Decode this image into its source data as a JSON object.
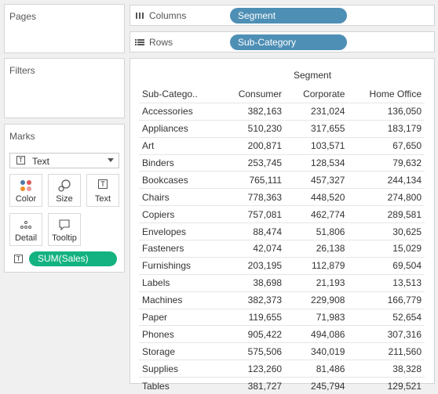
{
  "panels": {
    "pages": "Pages",
    "filters": "Filters",
    "marks": "Marks"
  },
  "marks": {
    "dropdown": "Text",
    "buttons": [
      "Color",
      "Size",
      "Text",
      "Detail",
      "Tooltip"
    ],
    "field_pill": "SUM(Sales)"
  },
  "shelves": {
    "columns_label": "Columns",
    "columns_pill": "Segment",
    "rows_label": "Rows",
    "rows_pill": "Sub-Category"
  },
  "table": {
    "group_header": "Segment",
    "columns": [
      "Sub-Catego..",
      "Consumer",
      "Corporate",
      "Home Office"
    ],
    "rows": [
      [
        "Accessories",
        "382,163",
        "231,024",
        "136,050"
      ],
      [
        "Appliances",
        "510,230",
        "317,655",
        "183,179"
      ],
      [
        "Art",
        "200,871",
        "103,571",
        "67,650"
      ],
      [
        "Binders",
        "253,745",
        "128,534",
        "79,632"
      ],
      [
        "Bookcases",
        "765,111",
        "457,327",
        "244,134"
      ],
      [
        "Chairs",
        "778,363",
        "448,520",
        "274,800"
      ],
      [
        "Copiers",
        "757,081",
        "462,774",
        "289,581"
      ],
      [
        "Envelopes",
        "88,474",
        "51,806",
        "30,625"
      ],
      [
        "Fasteners",
        "42,074",
        "26,138",
        "15,029"
      ],
      [
        "Furnishings",
        "203,195",
        "112,879",
        "69,504"
      ],
      [
        "Labels",
        "38,698",
        "21,193",
        "13,513"
      ],
      [
        "Machines",
        "382,373",
        "229,908",
        "166,779"
      ],
      [
        "Paper",
        "119,655",
        "71,983",
        "52,654"
      ],
      [
        "Phones",
        "905,422",
        "494,086",
        "307,316"
      ],
      [
        "Storage",
        "575,506",
        "340,019",
        "211,560"
      ],
      [
        "Supplies",
        "123,260",
        "81,486",
        "38,328"
      ],
      [
        "Tables",
        "381,727",
        "245,794",
        "129,521"
      ]
    ]
  },
  "colors": {
    "dimension_pill": "#4e8fb5",
    "measure_pill": "#13b280"
  }
}
